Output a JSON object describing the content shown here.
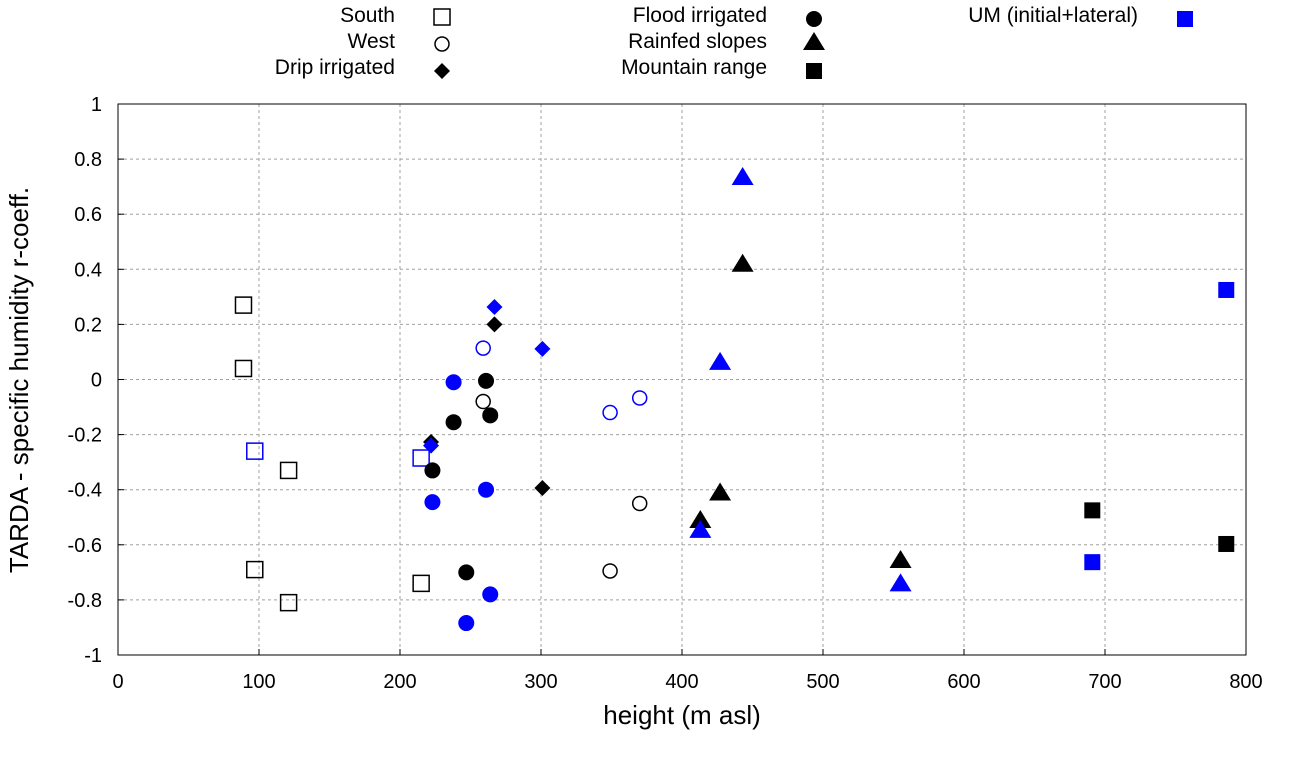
{
  "chart_data": {
    "type": "scatter",
    "xlabel": "height (m asl)",
    "ylabel": "TARDA - specific humidity r-coeff.",
    "xlim": [
      0,
      800
    ],
    "ylim": [
      -1,
      1
    ],
    "xticks": [
      "0",
      "100",
      "200",
      "300",
      "400",
      "500",
      "600",
      "700",
      "800"
    ],
    "yticks": [
      "1",
      "0.8",
      "0.6",
      "0.4",
      "0.2",
      "0",
      "-0.2",
      "-0.4",
      "-0.6",
      "-0.8",
      "-1"
    ],
    "grid": true,
    "legend_position": "top (outside)",
    "legend": [
      {
        "label": "South",
        "marker": "square-open"
      },
      {
        "label": "West",
        "marker": "circle-open"
      },
      {
        "label": "Drip irrigated",
        "marker": "diamond"
      },
      {
        "label": "Flood irrigated",
        "marker": "circle"
      },
      {
        "label": "Rainfed slopes",
        "marker": "triangle"
      },
      {
        "label": "Mountain range",
        "marker": "square"
      },
      {
        "label": "UM (initial+lateral)",
        "marker": "square",
        "color": "#0000ff"
      }
    ],
    "colors": {
      "observed": "#000000",
      "model": "#0000ff"
    },
    "series": [
      {
        "name": "South",
        "marker": "square-open",
        "color": "#000000",
        "points": [
          [
            89,
            0.27
          ],
          [
            89,
            0.04
          ],
          [
            121,
            -0.33
          ],
          [
            97,
            -0.69
          ],
          [
            121,
            -0.81
          ],
          [
            215,
            -0.74
          ]
        ]
      },
      {
        "name": "South (UM)",
        "marker": "square-open",
        "color": "#0000ff",
        "points": [
          [
            97,
            -0.26
          ],
          [
            215,
            -0.285
          ]
        ]
      },
      {
        "name": "West",
        "marker": "circle-open",
        "color": "#000000",
        "points": [
          [
            259,
            -0.08
          ],
          [
            370,
            -0.45
          ],
          [
            349,
            -0.695
          ]
        ]
      },
      {
        "name": "West (UM)",
        "marker": "circle-open",
        "color": "#0000ff",
        "points": [
          [
            259,
            0.114
          ],
          [
            370,
            -0.067
          ],
          [
            349,
            -0.12
          ]
        ]
      },
      {
        "name": "Drip irrigated",
        "marker": "diamond",
        "color": "#000000",
        "points": [
          [
            267,
            0.2
          ],
          [
            222,
            -0.227
          ],
          [
            301,
            -0.394
          ]
        ]
      },
      {
        "name": "Drip irrigated (UM)",
        "marker": "diamond",
        "color": "#0000ff",
        "points": [
          [
            267,
            0.263
          ],
          [
            301,
            0.111
          ],
          [
            222,
            -0.24
          ]
        ]
      },
      {
        "name": "Flood irrigated",
        "marker": "circle",
        "color": "#000000",
        "points": [
          [
            261,
            -0.005
          ],
          [
            264,
            -0.13
          ],
          [
            238,
            -0.155
          ],
          [
            223,
            -0.33
          ],
          [
            247,
            -0.7
          ]
        ]
      },
      {
        "name": "Flood irrigated (UM)",
        "marker": "circle",
        "color": "#0000ff",
        "points": [
          [
            238,
            -0.01
          ],
          [
            261,
            -0.4
          ],
          [
            223,
            -0.445
          ],
          [
            264,
            -0.78
          ],
          [
            247,
            -0.884
          ]
        ]
      },
      {
        "name": "Rainfed slopes",
        "marker": "triangle",
        "color": "#000000",
        "points": [
          [
            443,
            0.42
          ],
          [
            427,
            -0.41
          ],
          [
            413,
            -0.51
          ],
          [
            555,
            -0.655
          ]
        ]
      },
      {
        "name": "Rainfed slopes (UM)",
        "marker": "triangle",
        "color": "#0000ff",
        "points": [
          [
            443,
            0.735
          ],
          [
            427,
            0.064
          ],
          [
            413,
            -0.546
          ],
          [
            555,
            -0.74
          ]
        ]
      },
      {
        "name": "Mountain range",
        "marker": "square",
        "color": "#000000",
        "points": [
          [
            691,
            -0.475
          ],
          [
            786,
            -0.597
          ]
        ]
      },
      {
        "name": "Mountain range (UM)",
        "marker": "square",
        "color": "#0000ff",
        "points": [
          [
            691,
            -0.663
          ],
          [
            786,
            0.325
          ]
        ]
      }
    ]
  }
}
